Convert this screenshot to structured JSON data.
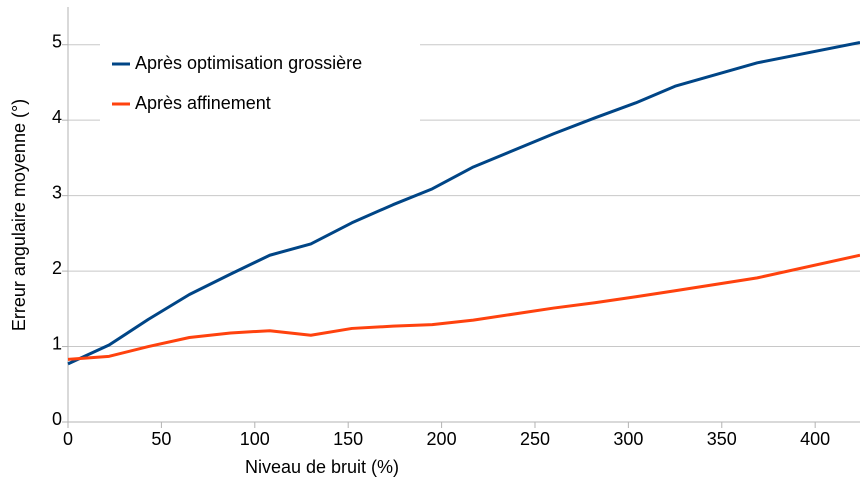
{
  "chart_data": {
    "type": "line",
    "xlabel": "Niveau de bruit (%)",
    "ylabel": "Erreur angulaire moyenne (°)",
    "x": [
      0,
      22,
      43,
      65,
      87,
      108,
      130,
      152,
      174,
      195,
      217,
      260,
      282,
      304,
      325,
      369,
      424
    ],
    "series": [
      {
        "name": "Après optimisation grossière",
        "color": "#004586",
        "values": [
          0.77,
          1.02,
          1.36,
          1.69,
          1.96,
          2.21,
          2.36,
          2.64,
          2.88,
          3.09,
          3.38,
          3.82,
          4.03,
          4.23,
          4.45,
          4.76,
          5.03
        ]
      },
      {
        "name": "Après affinement",
        "color": "#ff420e",
        "values": [
          0.83,
          0.87,
          1.0,
          1.12,
          1.18,
          1.21,
          1.15,
          1.24,
          1.27,
          1.29,
          1.35,
          1.51,
          1.58,
          1.66,
          1.74,
          1.91,
          2.21
        ]
      }
    ],
    "xlim": [
      0,
      424
    ],
    "ylim": [
      0,
      5.5
    ],
    "xticks": [
      0,
      50,
      100,
      150,
      200,
      250,
      300,
      350,
      400
    ],
    "yticks": [
      0,
      1,
      2,
      3,
      4,
      5
    ],
    "grid": true,
    "legend": "upper left"
  }
}
